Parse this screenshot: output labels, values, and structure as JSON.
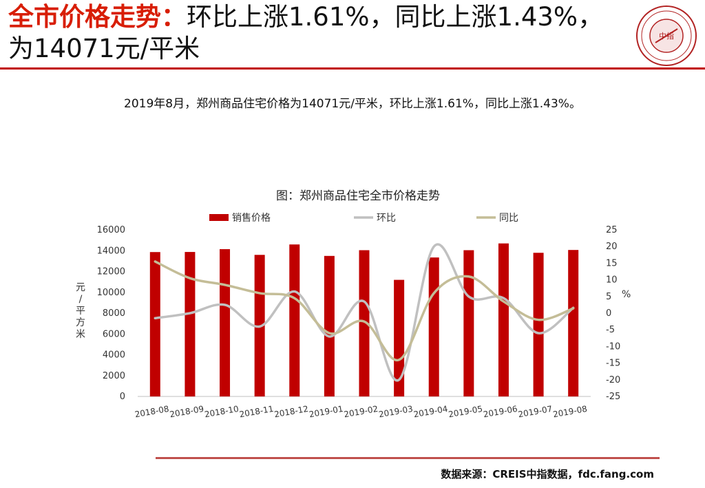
{
  "header": {
    "title_emphasis": "全市价格走势：",
    "title_rest": "环比上涨1.61%，同比上涨1.43%，为14071元/平米",
    "logo_text": "中指"
  },
  "summary": "2019年8月，郑州商品住宅价格为14071元/平米，环比上涨1.61%，同比上涨1.43%。",
  "footer": {
    "source": "数据来源：CREIS中指数据，fdc.fang.com"
  },
  "colors": {
    "bar": "#c00000",
    "mom": "#c0c0c0",
    "yoy": "#c4bd97",
    "accent": "#d81e06"
  },
  "chart_data": {
    "type": "bar",
    "title": "图：郑州商品住宅全市价格走势",
    "categories": [
      "2018-08",
      "2018-09",
      "2018-10",
      "2018-11",
      "2018-12",
      "2019-01",
      "2019-02",
      "2019-03",
      "2019-04",
      "2019-05",
      "2019-06",
      "2019-07",
      "2019-08"
    ],
    "series": [
      {
        "name": "销售价格",
        "type": "bar",
        "axis": "left",
        "values": [
          13870,
          13880,
          14150,
          13600,
          14600,
          13500,
          14050,
          11200,
          13350,
          14050,
          14700,
          13800,
          14071
        ]
      },
      {
        "name": "环比",
        "type": "line",
        "axis": "right",
        "values": [
          -1.5,
          0,
          2.5,
          -4,
          6.5,
          -7,
          3.5,
          -20,
          20,
          5,
          4.5,
          -6,
          1.61
        ]
      },
      {
        "name": "同比",
        "type": "line",
        "axis": "right",
        "values": [
          15.5,
          10.5,
          8.5,
          6,
          4.5,
          -6,
          -2.5,
          -14,
          6,
          11,
          3.5,
          -2,
          1.43
        ]
      }
    ],
    "ylabel": "元/平方米",
    "ylabel_right": "%",
    "ylim": [
      0,
      16000
    ],
    "yticks": [
      0,
      2000,
      4000,
      6000,
      8000,
      10000,
      12000,
      14000,
      16000
    ],
    "ylim_right": [
      -25,
      25
    ],
    "yticks_right": [
      -25,
      -20,
      -15,
      -10,
      -5,
      0,
      5,
      10,
      15,
      20,
      25
    ],
    "legend_position": "top",
    "grid": false
  }
}
